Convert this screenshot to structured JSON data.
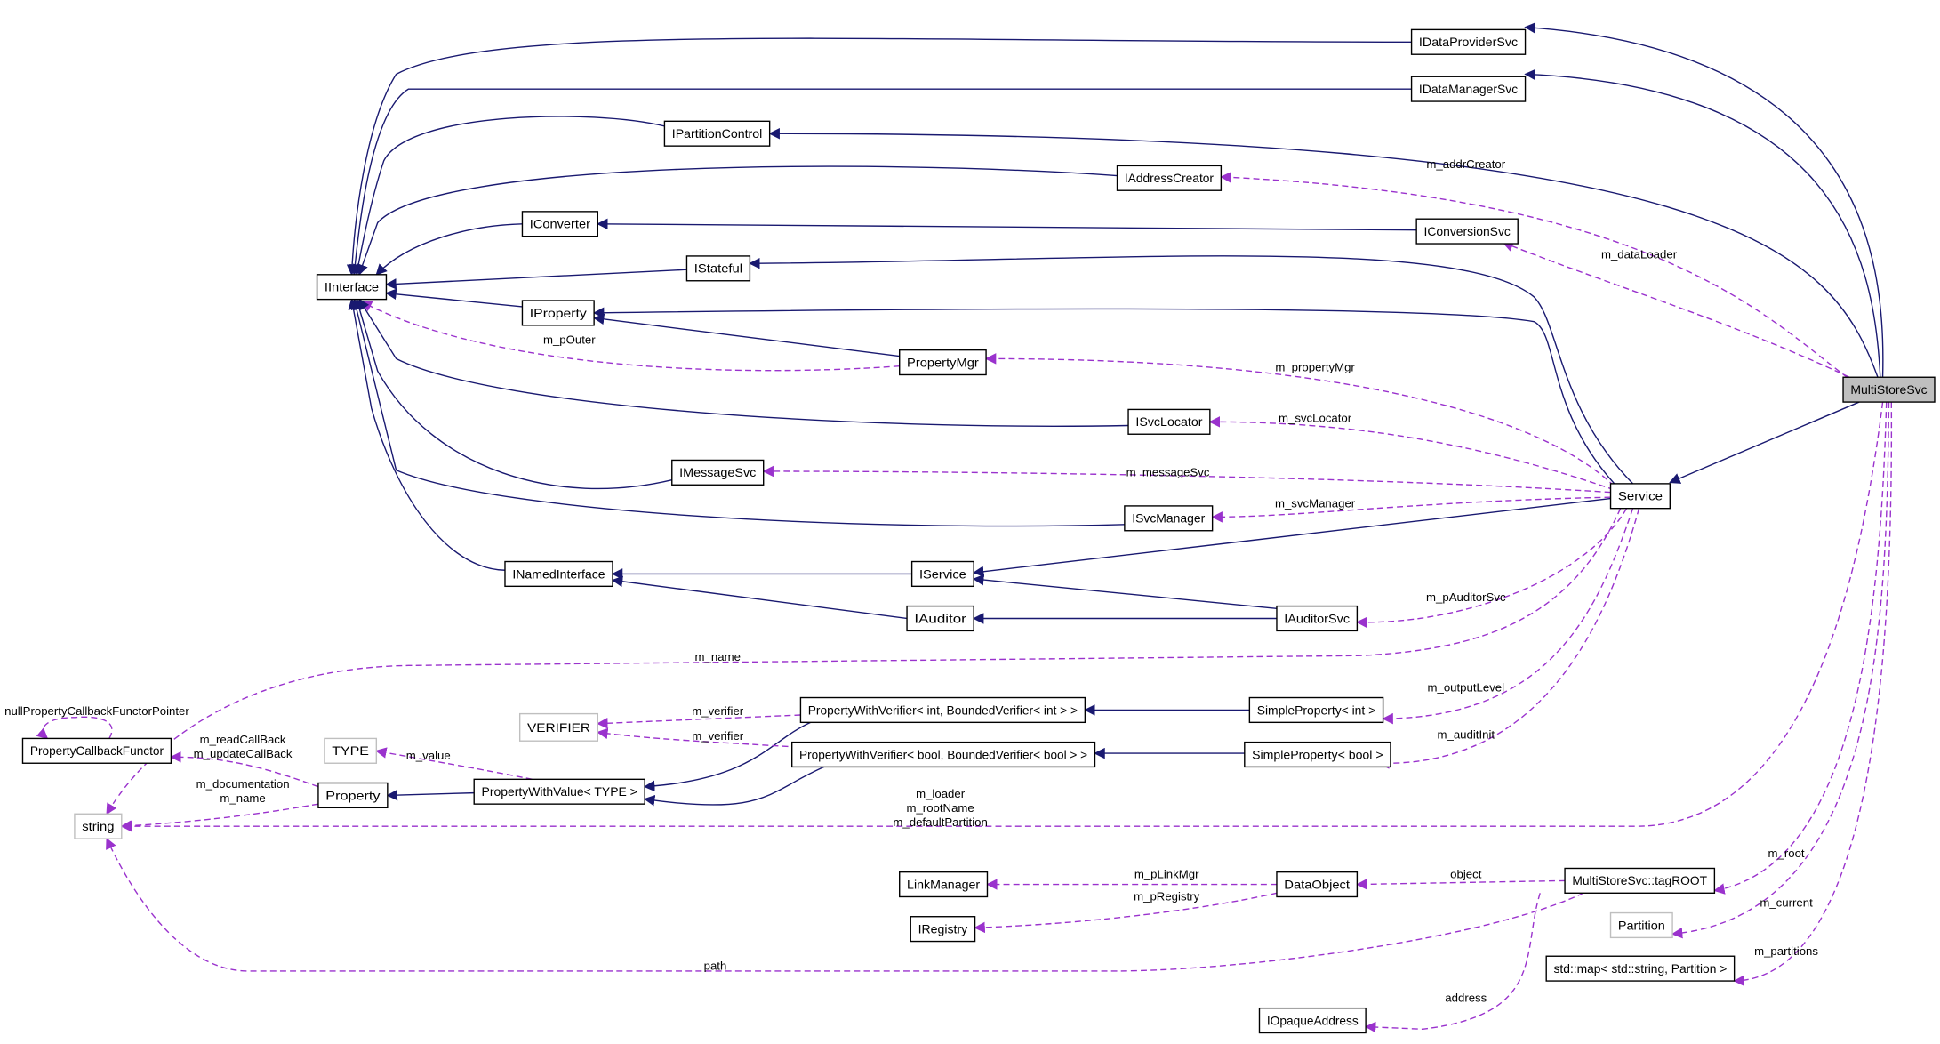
{
  "colors": {
    "inheritance": "#191970",
    "usage": "#9a32cd",
    "focus_fill": "#bfbfbf",
    "external_border": "#bfbfbf"
  },
  "nodes": [
    {
      "id": "IDataProviderSvc",
      "label": "IDataProviderSvc",
      "style": "normal"
    },
    {
      "id": "IDataManagerSvc",
      "label": "IDataManagerSvc",
      "style": "normal"
    },
    {
      "id": "IPartitionControl",
      "label": "IPartitionControl",
      "style": "normal"
    },
    {
      "id": "IAddressCreator",
      "label": "IAddressCreator",
      "style": "normal"
    },
    {
      "id": "IConverter",
      "label": "IConverter",
      "style": "normal"
    },
    {
      "id": "IConversionSvc",
      "label": "IConversionSvc",
      "style": "normal"
    },
    {
      "id": "IStateful",
      "label": "IStateful",
      "style": "normal"
    },
    {
      "id": "IInterface",
      "label": "IInterface",
      "style": "normal"
    },
    {
      "id": "IProperty",
      "label": "IProperty",
      "style": "normal"
    },
    {
      "id": "PropertyMgr",
      "label": "PropertyMgr",
      "style": "normal"
    },
    {
      "id": "MultiStoreSvc",
      "label": "MultiStoreSvc",
      "style": "focus"
    },
    {
      "id": "ISvcLocator",
      "label": "ISvcLocator",
      "style": "normal"
    },
    {
      "id": "IMessageSvc",
      "label": "IMessageSvc",
      "style": "normal"
    },
    {
      "id": "Service",
      "label": "Service",
      "style": "normal"
    },
    {
      "id": "ISvcManager",
      "label": "ISvcManager",
      "style": "normal"
    },
    {
      "id": "INamedInterface",
      "label": "INamedInterface",
      "style": "normal"
    },
    {
      "id": "IService",
      "label": "IService",
      "style": "normal"
    },
    {
      "id": "IAuditor",
      "label": "IAuditor",
      "style": "normal"
    },
    {
      "id": "IAuditorSvc",
      "label": "IAuditorSvc",
      "style": "normal"
    },
    {
      "id": "PWVInt",
      "label": "PropertyWithVerifier< int, BoundedVerifier< int > >",
      "style": "normal"
    },
    {
      "id": "SimplePropertyInt",
      "label": "SimpleProperty< int >",
      "style": "normal"
    },
    {
      "id": "VERIFIER",
      "label": "VERIFIER",
      "style": "external"
    },
    {
      "id": "PropertyCallbackFunctor",
      "label": "PropertyCallbackFunctor",
      "style": "normal"
    },
    {
      "id": "TYPE",
      "label": "TYPE",
      "style": "external"
    },
    {
      "id": "PWVBool",
      "label": "PropertyWithVerifier< bool, BoundedVerifier< bool > >",
      "style": "normal"
    },
    {
      "id": "SimplePropertyBool",
      "label": "SimpleProperty< bool >",
      "style": "normal"
    },
    {
      "id": "Property",
      "label": "Property",
      "style": "normal"
    },
    {
      "id": "PropertyWithValue",
      "label": "PropertyWithValue< TYPE >",
      "style": "normal"
    },
    {
      "id": "string",
      "label": "string",
      "style": "external"
    },
    {
      "id": "LinkManager",
      "label": "LinkManager",
      "style": "normal"
    },
    {
      "id": "DataObject",
      "label": "DataObject",
      "style": "normal"
    },
    {
      "id": "tagROOT",
      "label": "MultiStoreSvc::tagROOT",
      "style": "normal"
    },
    {
      "id": "IRegistry",
      "label": "IRegistry",
      "style": "normal"
    },
    {
      "id": "Partition",
      "label": "Partition",
      "style": "external"
    },
    {
      "id": "stdmap",
      "label": "std::map< std::string, Partition >",
      "style": "normal"
    },
    {
      "id": "IOpaqueAddress",
      "label": "IOpaqueAddress",
      "style": "normal"
    }
  ],
  "edges": [
    {
      "from": "MultiStoreSvc",
      "to": "IDataProviderSvc",
      "kind": "inherit",
      "labels": []
    },
    {
      "from": "MultiStoreSvc",
      "to": "IDataManagerSvc",
      "kind": "inherit",
      "labels": []
    },
    {
      "from": "MultiStoreSvc",
      "to": "IPartitionControl",
      "kind": "inherit",
      "labels": []
    },
    {
      "from": "MultiStoreSvc",
      "to": "Service",
      "kind": "inherit",
      "labels": []
    },
    {
      "from": "Service",
      "to": "IStateful",
      "kind": "inherit",
      "labels": []
    },
    {
      "from": "Service",
      "to": "IProperty",
      "kind": "inherit",
      "labels": []
    },
    {
      "from": "Service",
      "to": "IService",
      "kind": "inherit",
      "labels": []
    },
    {
      "from": "IDataProviderSvc",
      "to": "IInterface",
      "kind": "inherit",
      "labels": []
    },
    {
      "from": "IDataManagerSvc",
      "to": "IInterface",
      "kind": "inherit",
      "labels": []
    },
    {
      "from": "IPartitionControl",
      "to": "IInterface",
      "kind": "inherit",
      "labels": []
    },
    {
      "from": "IAddressCreator",
      "to": "IInterface",
      "kind": "inherit",
      "labels": []
    },
    {
      "from": "IConverter",
      "to": "IInterface",
      "kind": "inherit",
      "labels": []
    },
    {
      "from": "IConversionSvc",
      "to": "IConverter",
      "kind": "inherit",
      "labels": []
    },
    {
      "from": "IStateful",
      "to": "IInterface",
      "kind": "inherit",
      "labels": []
    },
    {
      "from": "IProperty",
      "to": "IInterface",
      "kind": "inherit",
      "labels": []
    },
    {
      "from": "PropertyMgr",
      "to": "IProperty",
      "kind": "inherit",
      "labels": []
    },
    {
      "from": "PropertyMgr",
      "to": "IInterface",
      "kind": "use",
      "labels": [
        "m_pOuter"
      ]
    },
    {
      "from": "ISvcLocator",
      "to": "IInterface",
      "kind": "inherit",
      "labels": []
    },
    {
      "from": "IMessageSvc",
      "to": "IInterface",
      "kind": "inherit",
      "labels": []
    },
    {
      "from": "ISvcManager",
      "to": "IInterface",
      "kind": "inherit",
      "labels": []
    },
    {
      "from": "INamedInterface",
      "to": "IInterface",
      "kind": "inherit",
      "labels": []
    },
    {
      "from": "IService",
      "to": "INamedInterface",
      "kind": "inherit",
      "labels": []
    },
    {
      "from": "IAuditor",
      "to": "INamedInterface",
      "kind": "inherit",
      "labels": []
    },
    {
      "from": "IAuditorSvc",
      "to": "IService",
      "kind": "inherit",
      "labels": []
    },
    {
      "from": "IAuditorSvc",
      "to": "IAuditor",
      "kind": "inherit",
      "labels": []
    },
    {
      "from": "SimplePropertyInt",
      "to": "PWVInt",
      "kind": "inherit",
      "labels": []
    },
    {
      "from": "SimplePropertyBool",
      "to": "PWVBool",
      "kind": "inherit",
      "labels": []
    },
    {
      "from": "PWVInt",
      "to": "PropertyWithValue",
      "kind": "inherit",
      "labels": []
    },
    {
      "from": "PWVBool",
      "to": "PropertyWithValue",
      "kind": "inherit",
      "labels": []
    },
    {
      "from": "PropertyWithValue",
      "to": "Property",
      "kind": "inherit",
      "labels": []
    },
    {
      "from": "MultiStoreSvc",
      "to": "IAddressCreator",
      "kind": "use",
      "labels": [
        "m_addrCreator"
      ]
    },
    {
      "from": "MultiStoreSvc",
      "to": "IConversionSvc",
      "kind": "use",
      "labels": [
        "m_dataLoader"
      ]
    },
    {
      "from": "Service",
      "to": "PropertyMgr",
      "kind": "use",
      "labels": [
        "m_propertyMgr"
      ]
    },
    {
      "from": "Service",
      "to": "ISvcLocator",
      "kind": "use",
      "labels": [
        "m_svcLocator"
      ]
    },
    {
      "from": "Service",
      "to": "IMessageSvc",
      "kind": "use",
      "labels": [
        "m_messageSvc"
      ]
    },
    {
      "from": "Service",
      "to": "ISvcManager",
      "kind": "use",
      "labels": [
        "m_svcManager"
      ]
    },
    {
      "from": "Service",
      "to": "IAuditorSvc",
      "kind": "use",
      "labels": [
        "m_pAuditorSvc"
      ]
    },
    {
      "from": "Service",
      "to": "string",
      "kind": "use",
      "labels": [
        "m_name"
      ]
    },
    {
      "from": "Service",
      "to": "SimplePropertyInt",
      "kind": "use",
      "labels": [
        "m_outputLevel"
      ]
    },
    {
      "from": "Service",
      "to": "SimplePropertyBool",
      "kind": "use",
      "labels": [
        "m_auditInit"
      ]
    },
    {
      "from": "MultiStoreSvc",
      "to": "string",
      "kind": "use",
      "labels": [
        "m_loader",
        "m_rootName",
        "m_defaultPartition"
      ]
    },
    {
      "from": "MultiStoreSvc",
      "to": "tagROOT",
      "kind": "use",
      "labels": [
        "m_root"
      ]
    },
    {
      "from": "MultiStoreSvc",
      "to": "Partition",
      "kind": "use",
      "labels": [
        "m_current"
      ]
    },
    {
      "from": "MultiStoreSvc",
      "to": "stdmap",
      "kind": "use",
      "labels": [
        "m_partitions"
      ]
    },
    {
      "from": "tagROOT",
      "to": "DataObject",
      "kind": "use",
      "labels": [
        "object"
      ]
    },
    {
      "from": "DataObject",
      "to": "LinkManager",
      "kind": "use",
      "labels": [
        "m_pLinkMgr"
      ]
    },
    {
      "from": "DataObject",
      "to": "IRegistry",
      "kind": "use",
      "labels": [
        "m_pRegistry"
      ]
    },
    {
      "from": "tagROOT",
      "to": "string",
      "kind": "use",
      "labels": [
        "path"
      ]
    },
    {
      "from": "tagROOT",
      "to": "IOpaqueAddress",
      "kind": "use",
      "labels": [
        "address"
      ]
    },
    {
      "from": "Property",
      "to": "string",
      "kind": "use",
      "labels": [
        "m_documentation",
        "m_name"
      ]
    },
    {
      "from": "Property",
      "to": "PropertyCallbackFunctor",
      "kind": "use",
      "labels": [
        "m_readCallBack",
        "m_updateCallBack"
      ]
    },
    {
      "from": "PropertyCallbackFunctor",
      "to": "PropertyCallbackFunctor",
      "kind": "use",
      "labels": [
        "nullPropertyCallbackFunctorPointer"
      ]
    },
    {
      "from": "PropertyWithValue",
      "to": "TYPE",
      "kind": "use",
      "labels": [
        "m_value"
      ]
    },
    {
      "from": "PWVInt",
      "to": "VERIFIER",
      "kind": "use",
      "labels": [
        "m_verifier"
      ]
    },
    {
      "from": "PWVBool",
      "to": "VERIFIER",
      "kind": "use",
      "labels": [
        "m_verifier"
      ]
    }
  ]
}
